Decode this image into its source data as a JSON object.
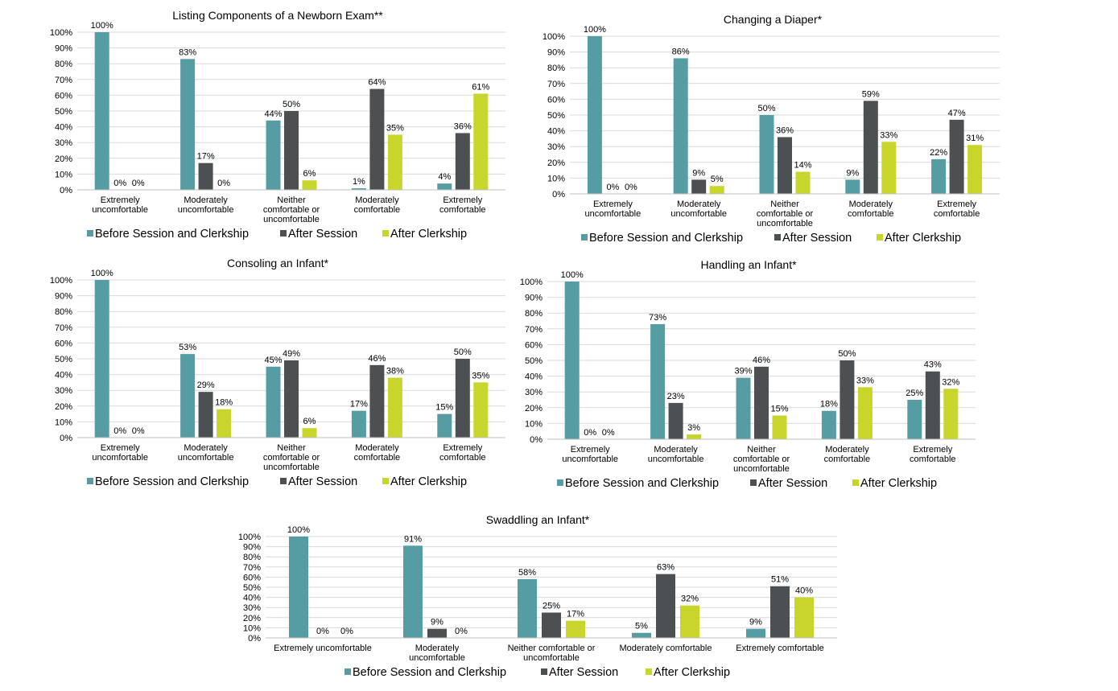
{
  "colors": {
    "before": "#569ca3",
    "after_session": "#4d5053",
    "after_clerkship": "#c8d62c",
    "grid": "#d9d9d9",
    "text": "#000000"
  },
  "chart_data": [
    {
      "type": "bar",
      "title": "Listing Components of a Newborn Exam**",
      "categories": [
        [
          "Extremely",
          "uncomfortable"
        ],
        [
          "Moderately",
          "uncomfortable"
        ],
        [
          "Neither",
          "comfortable or",
          "uncomfortable"
        ],
        [
          "Moderately",
          "comfortable"
        ],
        [
          "Extremely",
          "comfortable"
        ]
      ],
      "ylim": [
        0,
        100
      ],
      "yticks": [
        "0%",
        "10%",
        "20%",
        "30%",
        "40%",
        "50%",
        "60%",
        "70%",
        "80%",
        "90%",
        "100%"
      ],
      "series": [
        {
          "name": "Before Session and Clerkship",
          "values": [
            100,
            83,
            44,
            1,
            4
          ]
        },
        {
          "name": "After Session",
          "values": [
            0,
            17,
            50,
            64,
            36
          ]
        },
        {
          "name": "After Clerkship",
          "values": [
            0,
            0,
            6,
            35,
            61
          ]
        }
      ],
      "legend_position": "bottom"
    },
    {
      "type": "bar",
      "title": "Changing a Diaper*",
      "categories": [
        [
          "Extremely",
          "uncomfortable"
        ],
        [
          "Moderately",
          "uncomfortable"
        ],
        [
          "Neither",
          "comfortable or",
          "uncomfortable"
        ],
        [
          "Moderately",
          "comfortable"
        ],
        [
          "Extremely",
          "comfortable"
        ]
      ],
      "ylim": [
        0,
        100
      ],
      "yticks": [
        "0%",
        "10%",
        "20%",
        "30%",
        "40%",
        "50%",
        "60%",
        "70%",
        "80%",
        "90%",
        "100%"
      ],
      "series": [
        {
          "name": "Before Session and Clerkship",
          "values": [
            100,
            86,
            50,
            9,
            22
          ]
        },
        {
          "name": "After Session",
          "values": [
            0,
            9,
            36,
            59,
            47
          ]
        },
        {
          "name": "After Clerkship",
          "values": [
            0,
            5,
            14,
            33,
            31
          ]
        }
      ],
      "legend_position": "bottom"
    },
    {
      "type": "bar",
      "title": "Consoling an Infant*",
      "categories": [
        [
          "Extremely",
          "uncomfortable"
        ],
        [
          "Moderately",
          "uncomfortable"
        ],
        [
          "Neither",
          "comfortable or",
          "uncomfortable"
        ],
        [
          "Moderately",
          "comfortable"
        ],
        [
          "Extremely",
          "comfortable"
        ]
      ],
      "ylim": [
        0,
        100
      ],
      "yticks": [
        "0%",
        "10%",
        "20%",
        "30%",
        "40%",
        "50%",
        "60%",
        "70%",
        "80%",
        "90%",
        "100%"
      ],
      "series": [
        {
          "name": "Before Session and Clerkship",
          "values": [
            100,
            53,
            45,
            17,
            15
          ]
        },
        {
          "name": "After Session",
          "values": [
            0,
            29,
            49,
            46,
            50
          ]
        },
        {
          "name": "After Clerkship",
          "values": [
            0,
            18,
            6,
            38,
            35
          ]
        }
      ],
      "legend_position": "bottom"
    },
    {
      "type": "bar",
      "title": "Handling an Infant*",
      "categories": [
        [
          "Extremely",
          "uncomfortable"
        ],
        [
          "Moderately",
          "uncomfortable"
        ],
        [
          "Neither",
          "comfortable or",
          "uncomfortable"
        ],
        [
          "Moderately",
          "comfortable"
        ],
        [
          "Extremely",
          "comfortable"
        ]
      ],
      "ylim": [
        0,
        100
      ],
      "yticks": [
        "0%",
        "10%",
        "20%",
        "30%",
        "40%",
        "50%",
        "60%",
        "70%",
        "80%",
        "90%",
        "100%"
      ],
      "series": [
        {
          "name": "Before Session and Clerkship",
          "values": [
            100,
            73,
            39,
            18,
            25
          ]
        },
        {
          "name": "After Session",
          "values": [
            0,
            23,
            46,
            50,
            43
          ]
        },
        {
          "name": "After Clerkship",
          "values": [
            0,
            3,
            15,
            33,
            32
          ]
        }
      ],
      "legend_position": "bottom"
    },
    {
      "type": "bar",
      "title": "Swaddling an Infant*",
      "categories": [
        [
          "Extremely uncomfortable"
        ],
        [
          "Moderately",
          "uncomfortable"
        ],
        [
          "Neither comfortable or",
          "uncomfortable"
        ],
        [
          "Moderately comfortable"
        ],
        [
          "Extremely comfortable"
        ]
      ],
      "ylim": [
        0,
        100
      ],
      "yticks": [
        "0%",
        "10%",
        "20%",
        "30%",
        "40%",
        "50%",
        "60%",
        "70%",
        "80%",
        "90%",
        "100%"
      ],
      "series": [
        {
          "name": "Before Session and Clerkship",
          "values": [
            100,
            91,
            58,
            5,
            9
          ]
        },
        {
          "name": "After Session",
          "values": [
            0,
            9,
            25,
            63,
            51
          ]
        },
        {
          "name": "After Clerkship",
          "values": [
            0,
            0,
            17,
            32,
            40
          ]
        }
      ],
      "legend_position": "bottom"
    }
  ]
}
